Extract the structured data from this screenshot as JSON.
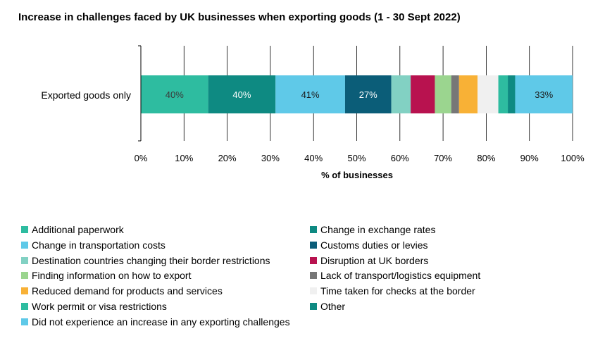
{
  "chart_data": {
    "type": "bar",
    "orientation": "horizontal",
    "stacked": true,
    "title": "Increase in challenges faced by UK businesses when exporting goods (1 - 30 Sept 2022)",
    "xlabel": "% of businesses",
    "ylabel": "",
    "xlim": [
      0,
      100
    ],
    "x_ticks": [
      "0%",
      "10%",
      "20%",
      "30%",
      "40%",
      "50%",
      "60%",
      "70%",
      "80%",
      "90%",
      "100%"
    ],
    "grid": true,
    "legend_position": "bottom",
    "categories": [
      "Exported goods only"
    ],
    "series": [
      {
        "name": "Additional paperwork",
        "color": "#2ebca0",
        "values": [
          15.6
        ],
        "label": "40%"
      },
      {
        "name": "Change in exchange rates",
        "color": "#0e8a82",
        "values": [
          15.6
        ],
        "label": "40%"
      },
      {
        "name": "Change in transportation costs",
        "color": "#5fc9e8",
        "values": [
          16.1
        ],
        "label": "41%"
      },
      {
        "name": "Customs duties or levies",
        "color": "#0b5d78",
        "values": [
          10.7
        ],
        "label": "27%"
      },
      {
        "name": "Destination countries changing their border restrictions",
        "color": "#82d1c3",
        "values": [
          4.5
        ],
        "label": ""
      },
      {
        "name": "Disruption at UK borders",
        "color": "#b8124f",
        "values": [
          5.6
        ],
        "label": ""
      },
      {
        "name": "Finding information on how to export",
        "color": "#9bd58f",
        "values": [
          3.8
        ],
        "label": ""
      },
      {
        "name": "Lack of transport/logistics equipment",
        "color": "#777777",
        "values": [
          1.8
        ],
        "label": ""
      },
      {
        "name": "Reduced demand for products and services",
        "color": "#f8b136",
        "values": [
          4.3
        ],
        "label": ""
      },
      {
        "name": "Time taken for checks at the border",
        "color": "#f0f0f0",
        "values": [
          4.8
        ],
        "label": ""
      },
      {
        "name": "Work permit or visa restrictions",
        "color": "#2ebca0",
        "values": [
          2.2
        ],
        "label": ""
      },
      {
        "name": "Other",
        "color": "#0e8a82",
        "values": [
          1.7
        ],
        "label": ""
      },
      {
        "name": "Did not experience an increase in any exporting challenges",
        "color": "#5fc9e8",
        "values": [
          13.3
        ],
        "label": "33%"
      }
    ]
  },
  "label_colors": [
    "#3a3a3a",
    "#ffffff",
    "#1a1a1a",
    "#ffffff",
    "",
    "",
    "",
    "",
    "",
    "",
    "",
    "",
    "#1a1a1a"
  ]
}
